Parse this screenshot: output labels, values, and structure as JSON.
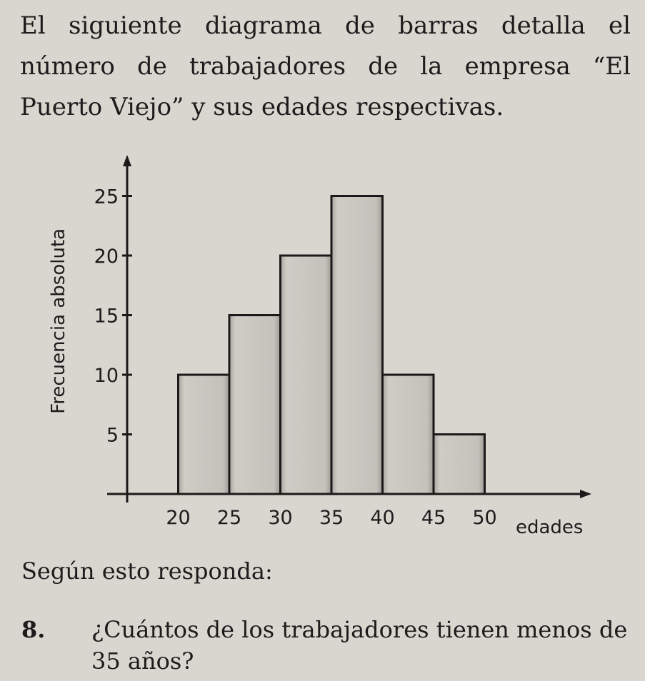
{
  "intro_text": "El siguiente diagrama de barras detalla el número de trabajadores de la empresa “El Puerto Viejo” y sus edades respectivas.",
  "chart_data": {
    "type": "bar",
    "subtype": "histogram",
    "title": "",
    "xlabel": "edades",
    "ylabel": "Frecuencia absoluta",
    "bins": [
      {
        "from": 20,
        "to": 25,
        "value": 10
      },
      {
        "from": 25,
        "to": 30,
        "value": 15
      },
      {
        "from": 30,
        "to": 35,
        "value": 20
      },
      {
        "from": 35,
        "to": 40,
        "value": 25
      },
      {
        "from": 40,
        "to": 45,
        "value": 10
      },
      {
        "from": 45,
        "to": 50,
        "value": 5
      }
    ],
    "xticks": [
      20,
      25,
      30,
      35,
      40,
      45,
      50
    ],
    "yticks": [
      5,
      10,
      15,
      20,
      25
    ],
    "xlim": [
      15,
      60
    ],
    "ylim": [
      0,
      30
    ],
    "grid": false,
    "legend": "none"
  },
  "prompt": "Según esto responda:",
  "question": {
    "number": "8.",
    "text": "¿Cuántos de los trabajadores tienen menos de 35 años?"
  },
  "colors": {
    "bar_fill": "#bdbab4",
    "bar_stroke": "#1a1a1a",
    "axis": "#1a1a1a",
    "background": "#d9d6d0"
  }
}
